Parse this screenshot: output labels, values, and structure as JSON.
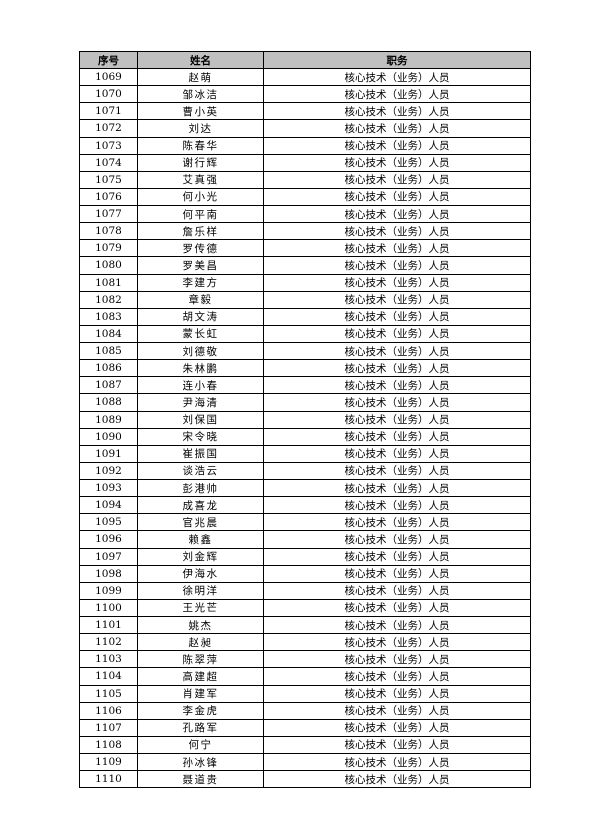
{
  "headers": {
    "seq": "序号",
    "name": "姓名",
    "title": "职务"
  },
  "rows": [
    {
      "seq": "1069",
      "name": "赵萌",
      "title": "核心技术（业务）人员"
    },
    {
      "seq": "1070",
      "name": "邹冰洁",
      "title": "核心技术（业务）人员"
    },
    {
      "seq": "1071",
      "name": "曹小英",
      "title": "核心技术（业务）人员"
    },
    {
      "seq": "1072",
      "name": "刘达",
      "title": "核心技术（业务）人员"
    },
    {
      "seq": "1073",
      "name": "陈春华",
      "title": "核心技术（业务）人员"
    },
    {
      "seq": "1074",
      "name": "谢行辉",
      "title": "核心技术（业务）人员"
    },
    {
      "seq": "1075",
      "name": "艾真强",
      "title": "核心技术（业务）人员"
    },
    {
      "seq": "1076",
      "name": "何小光",
      "title": "核心技术（业务）人员"
    },
    {
      "seq": "1077",
      "name": "何平南",
      "title": "核心技术（业务）人员"
    },
    {
      "seq": "1078",
      "name": "詹乐样",
      "title": "核心技术（业务）人员"
    },
    {
      "seq": "1079",
      "name": "罗传德",
      "title": "核心技术（业务）人员"
    },
    {
      "seq": "1080",
      "name": "罗美昌",
      "title": "核心技术（业务）人员"
    },
    {
      "seq": "1081",
      "name": "李建方",
      "title": "核心技术（业务）人员"
    },
    {
      "seq": "1082",
      "name": "章毅",
      "title": "核心技术（业务）人员"
    },
    {
      "seq": "1083",
      "name": "胡文涛",
      "title": "核心技术（业务）人员"
    },
    {
      "seq": "1084",
      "name": "蒙长虹",
      "title": "核心技术（业务）人员"
    },
    {
      "seq": "1085",
      "name": "刘德敬",
      "title": "核心技术（业务）人员"
    },
    {
      "seq": "1086",
      "name": "朱林鹏",
      "title": "核心技术（业务）人员"
    },
    {
      "seq": "1087",
      "name": "连小春",
      "title": "核心技术（业务）人员"
    },
    {
      "seq": "1088",
      "name": "尹海清",
      "title": "核心技术（业务）人员"
    },
    {
      "seq": "1089",
      "name": "刘保国",
      "title": "核心技术（业务）人员"
    },
    {
      "seq": "1090",
      "name": "宋令晓",
      "title": "核心技术（业务）人员"
    },
    {
      "seq": "1091",
      "name": "崔振国",
      "title": "核心技术（业务）人员"
    },
    {
      "seq": "1092",
      "name": "谈浩云",
      "title": "核心技术（业务）人员"
    },
    {
      "seq": "1093",
      "name": "彭港帅",
      "title": "核心技术（业务）人员"
    },
    {
      "seq": "1094",
      "name": "成喜龙",
      "title": "核心技术（业务）人员"
    },
    {
      "seq": "1095",
      "name": "官兆晨",
      "title": "核心技术（业务）人员"
    },
    {
      "seq": "1096",
      "name": "赖鑫",
      "title": "核心技术（业务）人员"
    },
    {
      "seq": "1097",
      "name": "刘金辉",
      "title": "核心技术（业务）人员"
    },
    {
      "seq": "1098",
      "name": "伊海水",
      "title": "核心技术（业务）人员"
    },
    {
      "seq": "1099",
      "name": "徐明洋",
      "title": "核心技术（业务）人员"
    },
    {
      "seq": "1100",
      "name": "王光芒",
      "title": "核心技术（业务）人员"
    },
    {
      "seq": "1101",
      "name": "姚杰",
      "title": "核心技术（业务）人员"
    },
    {
      "seq": "1102",
      "name": "赵昶",
      "title": "核心技术（业务）人员"
    },
    {
      "seq": "1103",
      "name": "陈翠萍",
      "title": "核心技术（业务）人员"
    },
    {
      "seq": "1104",
      "name": "高建超",
      "title": "核心技术（业务）人员"
    },
    {
      "seq": "1105",
      "name": "肖建军",
      "title": "核心技术（业务）人员"
    },
    {
      "seq": "1106",
      "name": "李金虎",
      "title": "核心技术（业务）人员"
    },
    {
      "seq": "1107",
      "name": "孔路军",
      "title": "核心技术（业务）人员"
    },
    {
      "seq": "1108",
      "name": "何宁",
      "title": "核心技术（业务）人员"
    },
    {
      "seq": "1109",
      "name": "孙冰锋",
      "title": "核心技术（业务）人员"
    },
    {
      "seq": "1110",
      "name": "聂道贵",
      "title": "核心技术（业务）人员"
    }
  ]
}
